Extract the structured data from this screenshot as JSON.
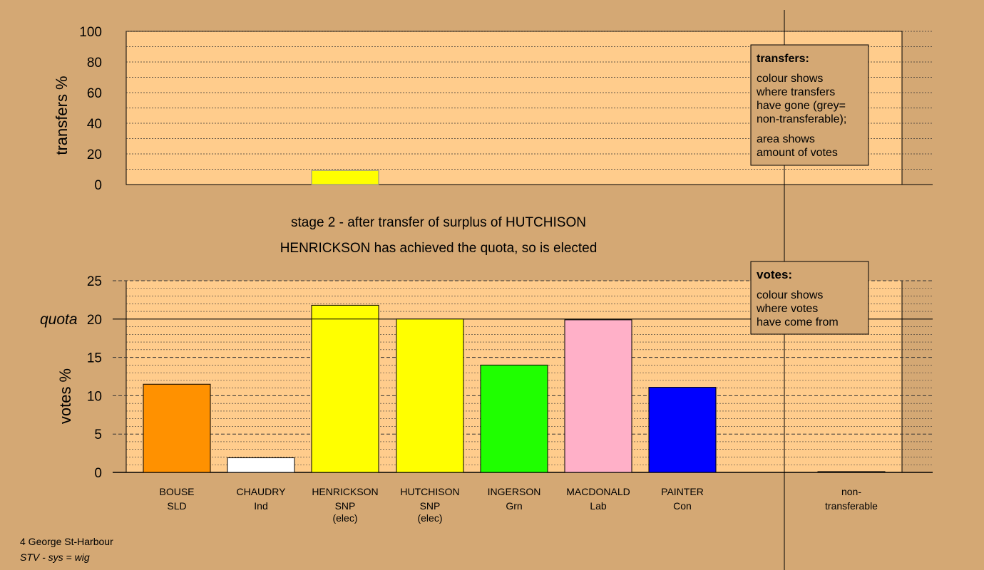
{
  "colors": {
    "background": "#d4a874",
    "plot_fill": "#ffcc8c",
    "grid": "#333333"
  },
  "chart_data": [
    {
      "type": "bar",
      "title": "",
      "ylabel": "transfers %",
      "ylim": [
        0,
        100
      ],
      "yticks": [
        "0",
        "20",
        "40",
        "60",
        "80",
        "100"
      ],
      "categories": [
        "BOUSE",
        "CHAUDRY",
        "HENRICKSON",
        "HUTCHISON",
        "INGERSON",
        "MACDONALD",
        "PAINTER",
        "non-transferable"
      ],
      "values": [
        0,
        0,
        9.2,
        0,
        0,
        0,
        0,
        0
      ],
      "colors": [
        "#ff9100",
        "#ffffff",
        "#ffff00",
        "#ffff00",
        "#1fff00",
        "#ffb0c8",
        "#0000ff",
        "#999999"
      ],
      "legend": {
        "heading": "transfers:",
        "lines": [
          "colour shows",
          "where transfers",
          "have gone (grey=",
          "non-transferable);",
          "area shows",
          "amount of votes"
        ]
      }
    },
    {
      "type": "bar",
      "ylabel": "votes %",
      "ylim": [
        0,
        25
      ],
      "yticks": [
        "0",
        "5",
        "10",
        "15",
        "20",
        "25"
      ],
      "quota": 20,
      "quota_label": "quota",
      "categories": [
        "BOUSE",
        "CHAUDRY",
        "HENRICKSON",
        "HUTCHISON",
        "INGERSON",
        "MACDONALD",
        "PAINTER",
        "non-transferable"
      ],
      "parties": [
        "SLD",
        "Ind",
        "SNP",
        "SNP",
        "Grn",
        "Lab",
        "Con",
        ""
      ],
      "elected": [
        false,
        false,
        true,
        true,
        false,
        false,
        false,
        false
      ],
      "elected_label": "(elec)",
      "values": [
        11.5,
        1.9,
        21.8,
        20.0,
        14.0,
        19.9,
        11.1,
        0.1
      ],
      "colors": [
        "#ff9100",
        "#ffffff",
        "#ffff00",
        "#ffff00",
        "#1fff00",
        "#ffb0c8",
        "#0000ff",
        "#999999"
      ],
      "legend": {
        "heading": "votes:",
        "lines": [
          "colour shows",
          "where votes",
          "have come from"
        ]
      }
    }
  ],
  "stage_title": "stage 2 - after transfer of surplus of HUTCHISON",
  "stage_subtitle": "HENRICKSON has achieved the quota, so is elected",
  "footer": {
    "location": "4 George St-Harbour",
    "system": "STV - sys = wig"
  }
}
